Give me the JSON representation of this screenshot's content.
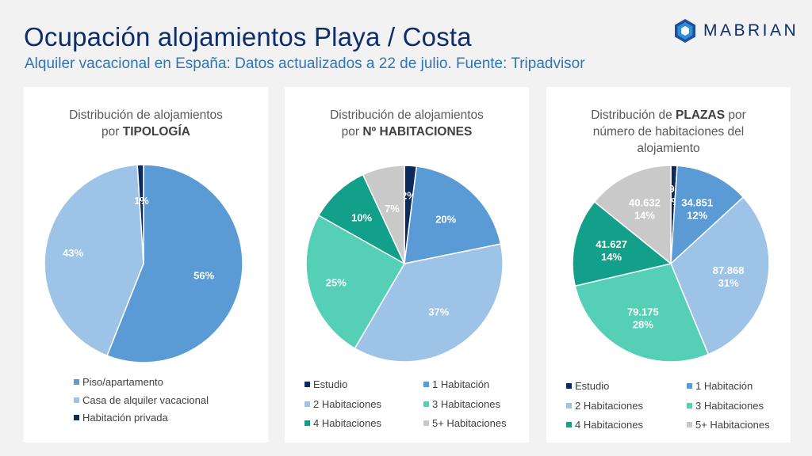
{
  "header": {
    "title": "Ocupación alojamientos Playa / Costa",
    "subtitle": "Alquiler vacacional en España: Datos actualizados a 22 de julio. Fuente: Tripadvisor",
    "logo_text": "MABRIAN"
  },
  "colors": {
    "dark_navy": "#0e2a5c",
    "mid_blue": "#5b9bd5",
    "light_blue": "#9dc3e6",
    "mint": "#55cfb6",
    "teal": "#12a08a",
    "gray": "#c9c9c9"
  },
  "chart_data": [
    {
      "type": "pie",
      "title_pre": "Distribución de alojamientos por ",
      "title_bold": "TIPOLOGÍA",
      "title_post": "",
      "slices": [
        {
          "label": "Piso/apartamento",
          "value": 56,
          "text": "56%",
          "color": "#5b9bd5"
        },
        {
          "label": "Casa de alquiler vacacional",
          "value": 43,
          "text": "43%",
          "color": "#9dc3e6"
        },
        {
          "label": "Habitación privada",
          "value": 1,
          "text": "1%",
          "color": "#0e2a5c"
        }
      ]
    },
    {
      "type": "pie",
      "title_pre": "Distribución de alojamientos por ",
      "title_bold": "Nº HABITACIONES",
      "title_post": "",
      "slices": [
        {
          "label": "Estudio",
          "value": 2,
          "text": "2%",
          "color": "#0e2a5c"
        },
        {
          "label": "1 Habitación",
          "value": 20,
          "text": "20%",
          "color": "#5b9bd5"
        },
        {
          "label": "2 Habitaciones",
          "value": 37,
          "text": "37%",
          "color": "#9dc3e6"
        },
        {
          "label": "3 Habitaciones",
          "value": 25,
          "text": "25%",
          "color": "#55cfb6"
        },
        {
          "label": "4 Habitaciones",
          "value": 10,
          "text": "10%",
          "color": "#12a08a"
        },
        {
          "label": "5+ Habitaciones",
          "value": 7,
          "text": "7%",
          "color": "#c9c9c9"
        }
      ]
    },
    {
      "type": "pie",
      "title_pre": "Distribución de ",
      "title_bold": "PLAZAS",
      "title_post": " por número de habitaciones del alojamiento",
      "slices": [
        {
          "label": "Estudio",
          "value": 2959,
          "text": "2.959",
          "pct": "1%",
          "color": "#0e2a5c"
        },
        {
          "label": "1 Habitación",
          "value": 34851,
          "text": "34.851",
          "pct": "12%",
          "color": "#5b9bd5"
        },
        {
          "label": "2 Habitaciones",
          "value": 87868,
          "text": "87.868",
          "pct": "31%",
          "color": "#9dc3e6"
        },
        {
          "label": "3 Habitaciones",
          "value": 79175,
          "text": "79.175",
          "pct": "28%",
          "color": "#55cfb6"
        },
        {
          "label": "4 Habitaciones",
          "value": 41627,
          "text": "41.627",
          "pct": "14%",
          "color": "#12a08a"
        },
        {
          "label": "5+ Habitaciones",
          "value": 40632,
          "text": "40.632",
          "pct": "14%",
          "color": "#c9c9c9"
        }
      ]
    }
  ]
}
